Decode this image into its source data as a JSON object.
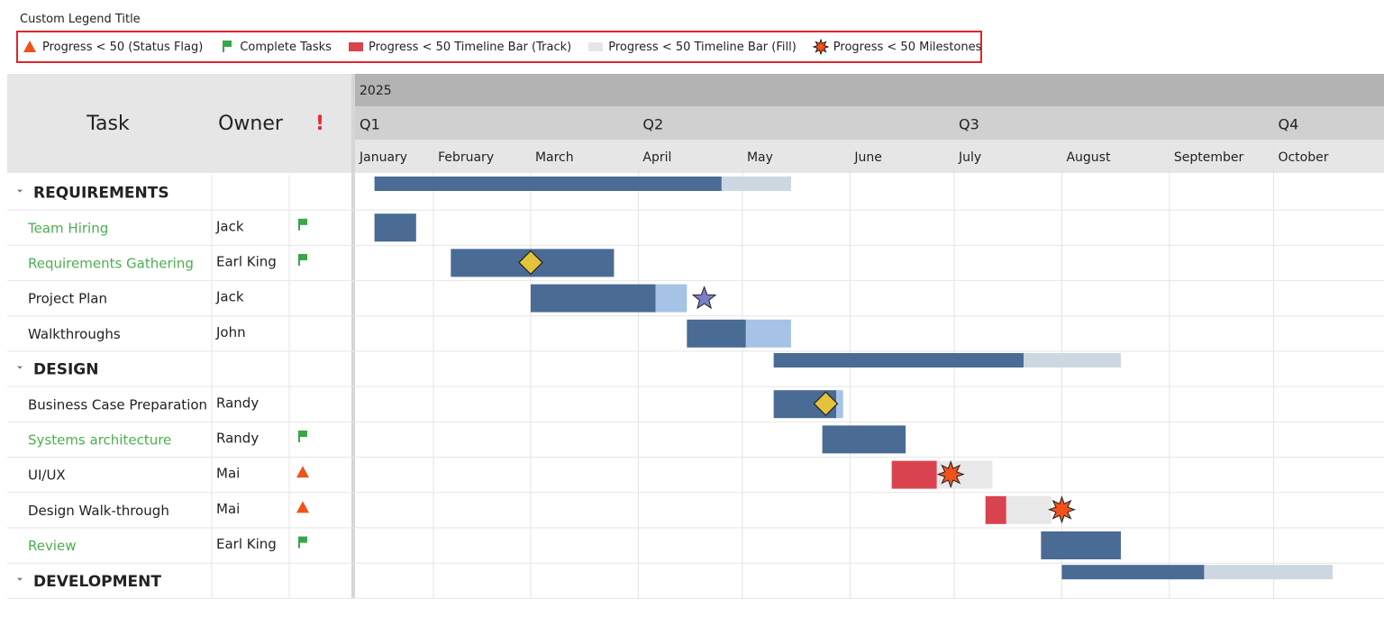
{
  "legend": {
    "title": "Custom Legend Title",
    "items": [
      {
        "icon": "warning",
        "label": "Progress < 50 (Status Flag)"
      },
      {
        "icon": "flag",
        "label": "Complete Tasks"
      },
      {
        "icon": "track",
        "label": "Progress < 50 Timeline Bar (Track)"
      },
      {
        "icon": "fill",
        "label": "Progress < 50 Timeline Bar (Fill)"
      },
      {
        "icon": "burst",
        "label": "Progress < 50 Milestones"
      }
    ]
  },
  "grid": {
    "headers": [
      "Task",
      "Owner",
      "!"
    ]
  },
  "timeline": {
    "year": "2025",
    "xlim": [
      8.4,
      304.8
    ],
    "quarters": [
      {
        "label": "Q1",
        "start": 0
      },
      {
        "label": "Q2",
        "start": 90
      },
      {
        "label": "Q3",
        "start": 181
      },
      {
        "label": "Q4",
        "start": 273
      }
    ],
    "months": [
      {
        "label": "January",
        "start": 0
      },
      {
        "label": "February",
        "start": 31
      },
      {
        "label": "March",
        "start": 59
      },
      {
        "label": "April",
        "start": 90
      },
      {
        "label": "May",
        "start": 120
      },
      {
        "label": "June",
        "start": 151
      },
      {
        "label": "July",
        "start": 181
      },
      {
        "label": "August",
        "start": 212
      },
      {
        "label": "September",
        "start": 243
      },
      {
        "label": "October",
        "start": 273
      }
    ]
  },
  "rows": [
    {
      "task": "REQUIREMENTS",
      "kind": "summary",
      "start": 14,
      "done": 114,
      "end": 134
    },
    {
      "task": "Team Hiring",
      "owner": "Jack",
      "status": "complete",
      "kind": "task",
      "start": 14,
      "done": 26,
      "end": 26
    },
    {
      "task": "Requirements Gathering",
      "owner": "Earl King",
      "status": "complete",
      "kind": "task",
      "start": 36,
      "done": 83,
      "end": 83,
      "milestone": {
        "day": 59,
        "shape": "diamond"
      }
    },
    {
      "task": "Project Plan",
      "owner": "Jack",
      "kind": "task",
      "start": 59,
      "done": 95,
      "end": 104,
      "milestone": {
        "day": 109,
        "shape": "star"
      }
    },
    {
      "task": "Walkthroughs",
      "owner": "John",
      "kind": "task",
      "start": 104,
      "done": 121,
      "end": 134
    },
    {
      "task": "DESIGN",
      "kind": "summary",
      "start": 129,
      "done": 201,
      "end": 229
    },
    {
      "task": "Business Case Preparation",
      "owner": "Randy",
      "kind": "task",
      "start": 129,
      "done": 147,
      "end": 149,
      "milestone": {
        "day": 144,
        "shape": "diamond"
      }
    },
    {
      "task": "Systems architecture",
      "owner": "Randy",
      "status": "complete",
      "kind": "task",
      "start": 143,
      "done": 167,
      "end": 167
    },
    {
      "task": "UI/UX",
      "owner": "Mai",
      "status": "warning",
      "kind": "critical",
      "start": 163,
      "done": 176,
      "end": 192,
      "milestone": {
        "day": 180,
        "shape": "burst"
      }
    },
    {
      "task": "Design Walk-through",
      "owner": "Mai",
      "status": "warning",
      "kind": "critical",
      "start": 190,
      "done": 196,
      "end": 209,
      "milestone": {
        "day": 212,
        "shape": "burst"
      }
    },
    {
      "task": "Review",
      "owner": "Earl King",
      "status": "complete",
      "kind": "task",
      "start": 206,
      "done": 229,
      "end": 229
    },
    {
      "task": "DEVELOPMENT",
      "kind": "summary",
      "start": 212,
      "done": 253,
      "end": 290
    }
  ]
}
